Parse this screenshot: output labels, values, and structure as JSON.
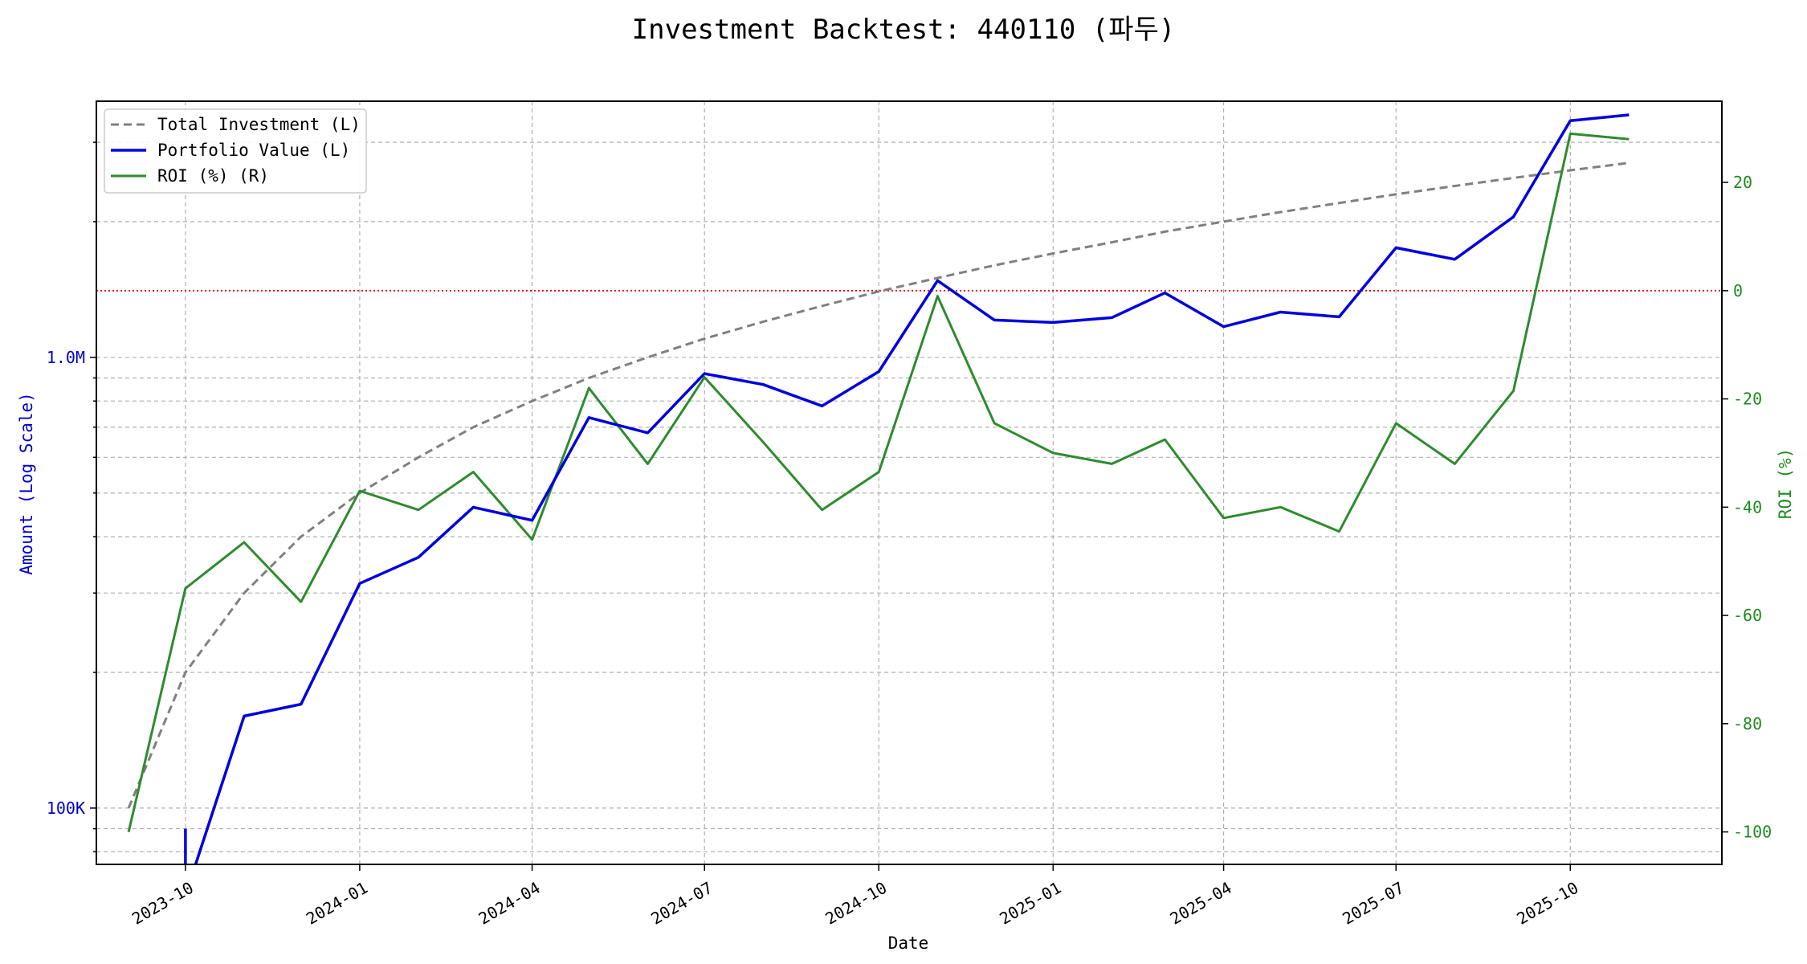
{
  "colors": {
    "investment": "#808080",
    "portfolio": "#0000dd",
    "roi": "#2e8b2e",
    "zero_line": "#e00000",
    "grid": "#b0b0b0",
    "left_axis_text": "#0000cc",
    "right_axis_text": "#1f8a1f"
  },
  "chart_data": {
    "type": "line",
    "title": "Investment Backtest: 440110 (파두)",
    "xlabel": "Date",
    "ylabel_left": "Amount (Log Scale)",
    "ylabel_right": "ROI (%)",
    "x_range": [
      "2023-08-15",
      "2025-12-20"
    ],
    "ylim_left": [
      75000,
      3700000
    ],
    "ylim_right": [
      -106,
      35
    ],
    "y_scale_left": "log",
    "grid": true,
    "legend_position": "top-left",
    "x_ticks": [
      "2023-10",
      "2024-01",
      "2024-04",
      "2024-07",
      "2024-10",
      "2025-01",
      "2025-04",
      "2025-07",
      "2025-10"
    ],
    "y_ticks_left": [
      {
        "value": 100000,
        "label": "100K"
      },
      {
        "value": 1000000,
        "label": "1.0M"
      }
    ],
    "y_ticks_right": [
      20,
      0,
      -20,
      -40,
      -60,
      -80,
      -100
    ],
    "zero_line_roi": 0,
    "series": [
      {
        "name": "Total Investment (L)",
        "axis": "left",
        "style": "dashed",
        "points": [
          [
            "2023-09-01",
            100000
          ],
          [
            "2023-10-01",
            200000
          ],
          [
            "2023-11-01",
            300000
          ],
          [
            "2023-12-01",
            400000
          ],
          [
            "2024-01-01",
            500000
          ],
          [
            "2024-02-01",
            600000
          ],
          [
            "2024-03-01",
            700000
          ],
          [
            "2024-04-01",
            800000
          ],
          [
            "2024-05-01",
            900000
          ],
          [
            "2024-06-01",
            1000000
          ],
          [
            "2024-07-01",
            1100000
          ],
          [
            "2024-08-01",
            1200000
          ],
          [
            "2024-09-01",
            1300000
          ],
          [
            "2024-10-01",
            1400000
          ],
          [
            "2024-11-01",
            1500000
          ],
          [
            "2024-12-01",
            1600000
          ],
          [
            "2025-01-01",
            1700000
          ],
          [
            "2025-02-01",
            1800000
          ],
          [
            "2025-03-01",
            1900000
          ],
          [
            "2025-04-01",
            2000000
          ],
          [
            "2025-05-01",
            2100000
          ],
          [
            "2025-06-01",
            2200000
          ],
          [
            "2025-07-01",
            2300000
          ],
          [
            "2025-08-01",
            2400000
          ],
          [
            "2025-09-01",
            2500000
          ],
          [
            "2025-10-01",
            2600000
          ],
          [
            "2025-11-01",
            2700000
          ]
        ]
      },
      {
        "name": "Portfolio Value (L)",
        "axis": "left",
        "style": "solid",
        "points": [
          [
            "2023-10-01",
            90000
          ],
          [
            "2023-10-01",
            64000
          ],
          [
            "2023-11-01",
            160000
          ],
          [
            "2023-12-01",
            170000
          ],
          [
            "2024-01-01",
            315000
          ],
          [
            "2024-02-01",
            360000
          ],
          [
            "2024-03-01",
            465000
          ],
          [
            "2024-04-01",
            435000
          ],
          [
            "2024-05-01",
            735000
          ],
          [
            "2024-06-01",
            680000
          ],
          [
            "2024-07-01",
            920000
          ],
          [
            "2024-08-01",
            870000
          ],
          [
            "2024-09-01",
            780000
          ],
          [
            "2024-10-01",
            930000
          ],
          [
            "2024-11-01",
            1480000
          ],
          [
            "2024-12-01",
            1210000
          ],
          [
            "2025-01-01",
            1195000
          ],
          [
            "2025-02-01",
            1225000
          ],
          [
            "2025-03-01",
            1390000
          ],
          [
            "2025-04-01",
            1170000
          ],
          [
            "2025-05-01",
            1260000
          ],
          [
            "2025-06-01",
            1230000
          ],
          [
            "2025-07-01",
            1750000
          ],
          [
            "2025-08-01",
            1650000
          ],
          [
            "2025-09-01",
            2050000
          ],
          [
            "2025-10-01",
            3350000
          ],
          [
            "2025-11-01",
            3450000
          ]
        ]
      },
      {
        "name": "ROI (%) (R)",
        "axis": "right",
        "style": "solid",
        "points": [
          [
            "2023-09-01",
            -100
          ],
          [
            "2023-10-01",
            -55
          ],
          [
            "2023-11-01",
            -46.5
          ],
          [
            "2023-12-01",
            -57.5
          ],
          [
            "2024-01-01",
            -37
          ],
          [
            "2024-02-01",
            -40.5
          ],
          [
            "2024-03-01",
            -33.5
          ],
          [
            "2024-04-01",
            -46
          ],
          [
            "2024-05-01",
            -18
          ],
          [
            "2024-06-01",
            -32
          ],
          [
            "2024-07-01",
            -16
          ],
          [
            "2024-08-01",
            -28
          ],
          [
            "2024-09-01",
            -40.5
          ],
          [
            "2024-10-01",
            -33.5
          ],
          [
            "2024-11-01",
            -1
          ],
          [
            "2024-12-01",
            -24.5
          ],
          [
            "2025-01-01",
            -30
          ],
          [
            "2025-02-01",
            -32
          ],
          [
            "2025-03-01",
            -27.5
          ],
          [
            "2025-04-01",
            -42
          ],
          [
            "2025-05-01",
            -40
          ],
          [
            "2025-06-01",
            -44.5
          ],
          [
            "2025-07-01",
            -24.5
          ],
          [
            "2025-08-01",
            -32
          ],
          [
            "2025-09-01",
            -18.5
          ],
          [
            "2025-10-01",
            29
          ],
          [
            "2025-11-01",
            28
          ]
        ]
      }
    ]
  }
}
